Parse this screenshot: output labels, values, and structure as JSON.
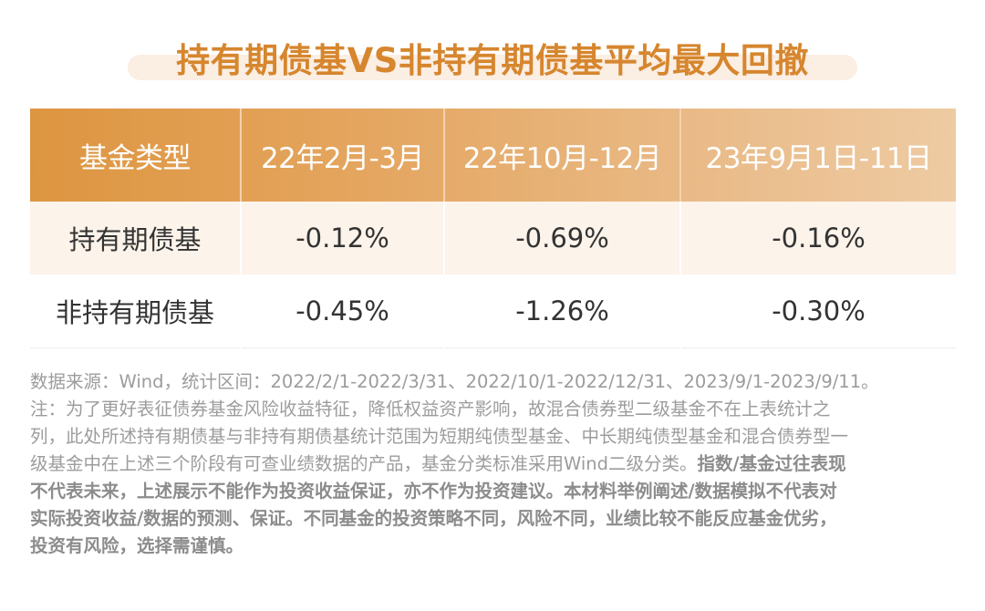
{
  "title": "持有期债基VS非持有期债基平均最大回撤",
  "table": {
    "headers": [
      "基金类型",
      "22年2月-3月",
      "22年10月-12月",
      "23年9月1日-11日"
    ],
    "rows": [
      {
        "name": "持有期债基",
        "values": [
          "-0.12%",
          "-0.69%",
          "-0.16%"
        ]
      },
      {
        "name": "非持有期债基",
        "values": [
          "-0.45%",
          "-1.26%",
          "-0.30%"
        ]
      }
    ]
  },
  "notes": {
    "line1": "数据来源：Wind，统计区间：2022/2/1-2022/3/31、2022/10/1-2022/12/31、2023/9/1-2023/9/11。",
    "line2": "注：为了更好表征债券基金风险收益特征，降低权益资产影响，故混合债券型二级基金不在上表统计之",
    "line3": "列，此处所述持有期债基与非持有期债基统计范围为短期纯债型基金、中长期纯债型基金和混合债券型一",
    "line4_normal": "级基金中在上述三个阶段有可查业绩数据的产品，基金分类标准采用Wind二级分类。",
    "line4_bold": "指数/基金过往表现",
    "line5": "不代表未来，上述展示不能作为投资收益保证，亦不作为投资建议。本材料举例阐述/数据模拟不代表对",
    "line6": "实际投资收益/数据的预测、保证。不同基金的投资策略不同，风险不同，业绩比较不能反应基金优劣，",
    "line7": "投资有风险，选择需谨慎。"
  }
}
